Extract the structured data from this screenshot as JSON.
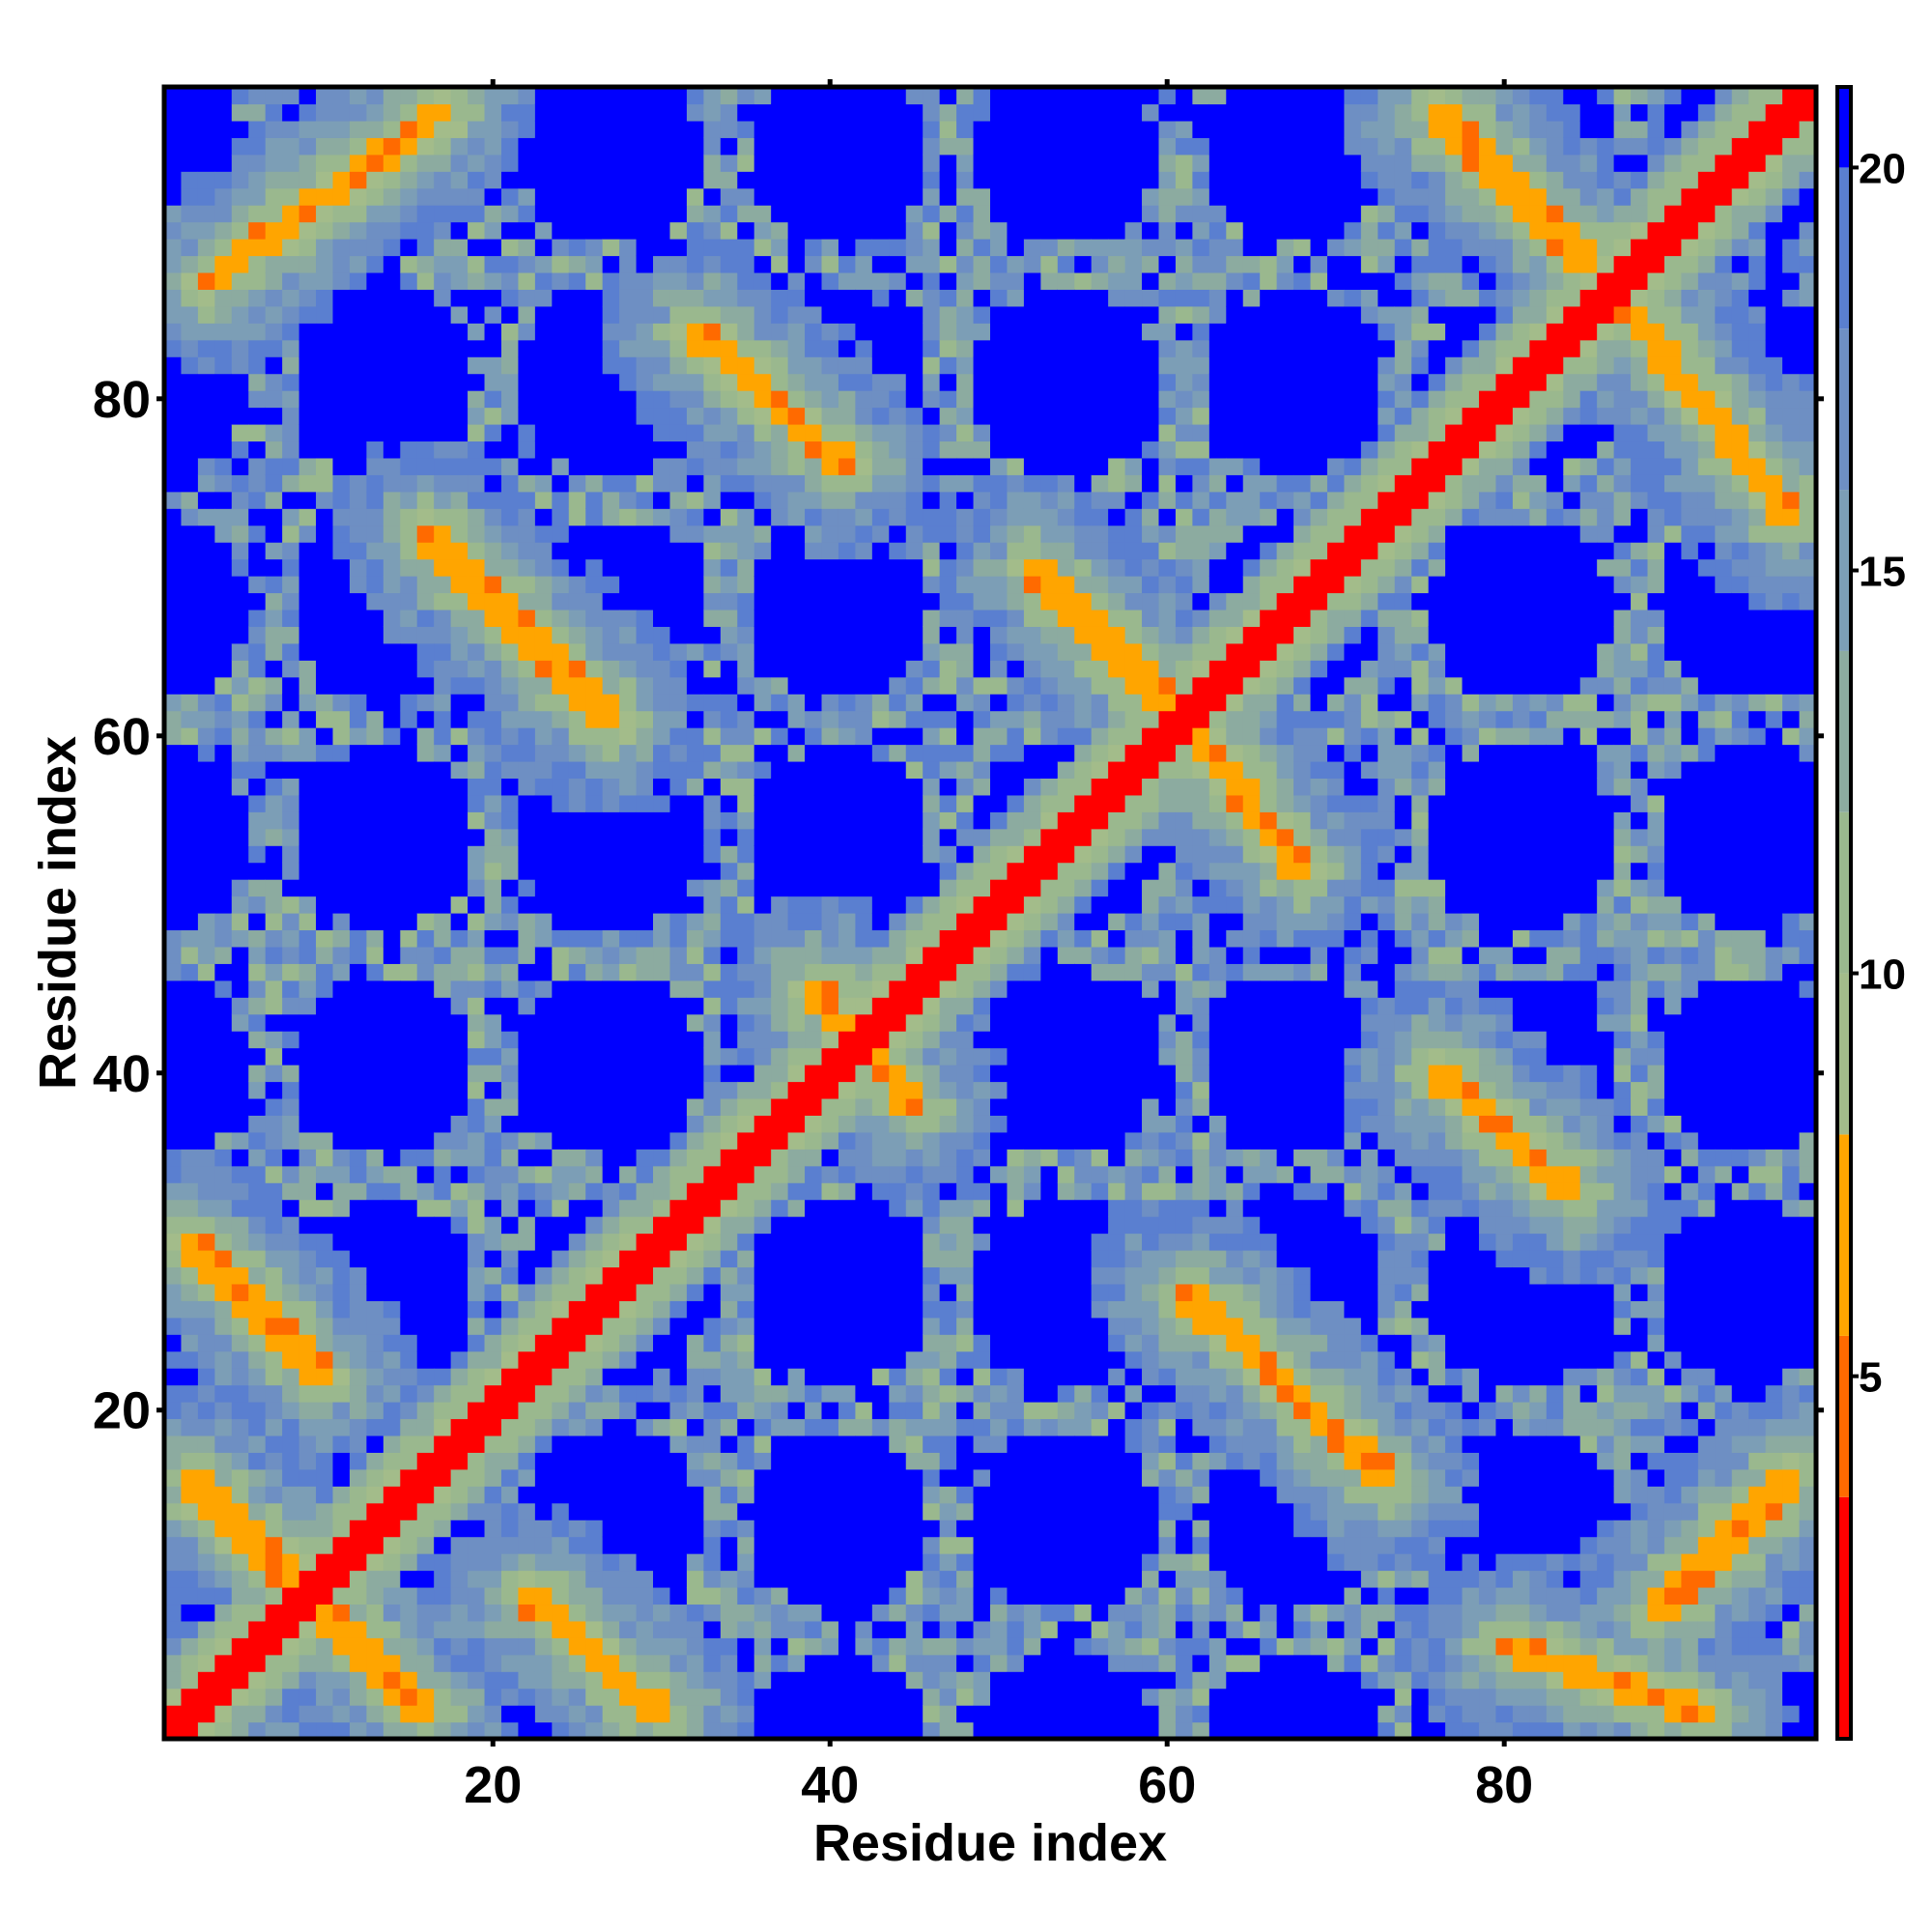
{
  "chart_data": {
    "type": "heatmap",
    "title": "",
    "xlabel": "Residue index",
    "ylabel": "Residue index",
    "n_residues": 98,
    "xlim": [
      0.5,
      98.5
    ],
    "ylim": [
      0.5,
      98.5
    ],
    "x_ticks": [
      20,
      40,
      60,
      80
    ],
    "y_ticks": [
      20,
      40,
      60,
      80
    ],
    "grid": false,
    "legend": "colorbar-right",
    "colorbar": {
      "label": "",
      "range": [
        0.5,
        21.0
      ],
      "ticks": [
        5,
        10,
        15,
        20
      ],
      "bins": [
        {
          "max": 3.5,
          "color": "#ff0000"
        },
        {
          "max": 5.5,
          "color": "#ff6a00"
        },
        {
          "max": 8.0,
          "color": "#ffa500"
        },
        {
          "max": 10.0,
          "color": "#a3bc8a"
        },
        {
          "max": 12.0,
          "color": "#9ab88e"
        },
        {
          "max": 14.0,
          "color": "#8caba0"
        },
        {
          "max": 16.0,
          "color": "#7c9eb6"
        },
        {
          "max": 18.0,
          "color": "#6e8fc3"
        },
        {
          "max": 20.0,
          "color": "#5a7fd0"
        },
        {
          "max": 21.0,
          "color": "#0000ff"
        }
      ]
    },
    "matrix_description_values": {
      "main_diagonal_distance": 1.0,
      "contact_distance": 5.0,
      "far_distance": 21.0
    },
    "contact_bands": [
      {
        "x": [
          2,
          16
        ],
        "y": [
          16,
          2
        ],
        "note": "antidiagonal"
      },
      {
        "x": [
          2,
          10
        ],
        "y": [
          30,
          22
        ]
      },
      {
        "x": [
          3,
          17
        ],
        "y": [
          87,
          97
        ]
      },
      {
        "x": [
          16,
          27
        ],
        "y": [
          72,
          61
        ]
      },
      {
        "x": [
          22,
          30
        ],
        "y": [
          9,
          2
        ]
      },
      {
        "x": [
          32,
          41
        ],
        "y": [
          84,
          76
        ]
      },
      {
        "x": [
          39,
          45
        ],
        "y": [
          45,
          38
        ]
      },
      {
        "x": [
          52,
          61
        ],
        "y": [
          70,
          61
        ]
      },
      {
        "x": [
          61,
          68
        ],
        "y": [
          61,
          52
        ]
      },
      {
        "x": [
          61,
          73
        ],
        "y": [
          27,
          16
        ]
      },
      {
        "x": [
          76,
          85
        ],
        "y": [
          97,
          88
        ]
      },
      {
        "x": [
          86,
          97
        ],
        "y": [
          87,
          73
        ]
      },
      {
        "x": [
          76,
          84
        ],
        "y": [
          40,
          33
        ]
      },
      {
        "x": [
          80,
          92
        ],
        "y": [
          6,
          2
        ]
      },
      {
        "x": [
          89,
          97
        ],
        "y": [
          8,
          16
        ]
      }
    ]
  }
}
